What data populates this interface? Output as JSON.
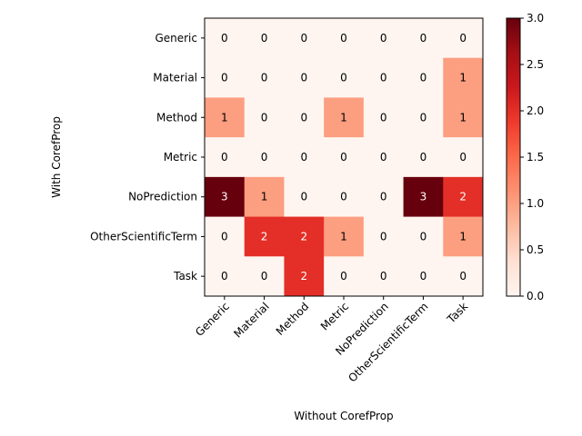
{
  "chart_data": {
    "type": "heatmap",
    "title": "",
    "xlabel": "Without CorefProp",
    "ylabel": "With CorefProp",
    "x_categories": [
      "Generic",
      "Material",
      "Method",
      "Metric",
      "NoPrediction",
      "OtherScientificTerm",
      "Task"
    ],
    "y_categories": [
      "Generic",
      "Material",
      "Method",
      "Metric",
      "NoPrediction",
      "OtherScientificTerm",
      "Task"
    ],
    "values": [
      [
        0,
        0,
        0,
        0,
        0,
        0,
        0
      ],
      [
        0,
        0,
        0,
        0,
        0,
        0,
        1
      ],
      [
        1,
        0,
        0,
        1,
        0,
        0,
        1
      ],
      [
        0,
        0,
        0,
        0,
        0,
        0,
        0
      ],
      [
        3,
        1,
        0,
        0,
        0,
        3,
        2
      ],
      [
        0,
        2,
        2,
        1,
        0,
        0,
        1
      ],
      [
        0,
        0,
        2,
        0,
        0,
        0,
        0
      ]
    ],
    "colormap": "Reds",
    "vmin": 0,
    "vmax": 3,
    "colorbar_ticks": [
      "0.0",
      "0.5",
      "1.0",
      "1.5",
      "2.0",
      "2.5",
      "3.0"
    ],
    "colors": {
      "0": "#fff5f0",
      "1": "#fc9e80",
      "2": "#e32f27",
      "3": "#67000d",
      "text_dark": "#000000",
      "text_light": "#ffffff"
    }
  }
}
